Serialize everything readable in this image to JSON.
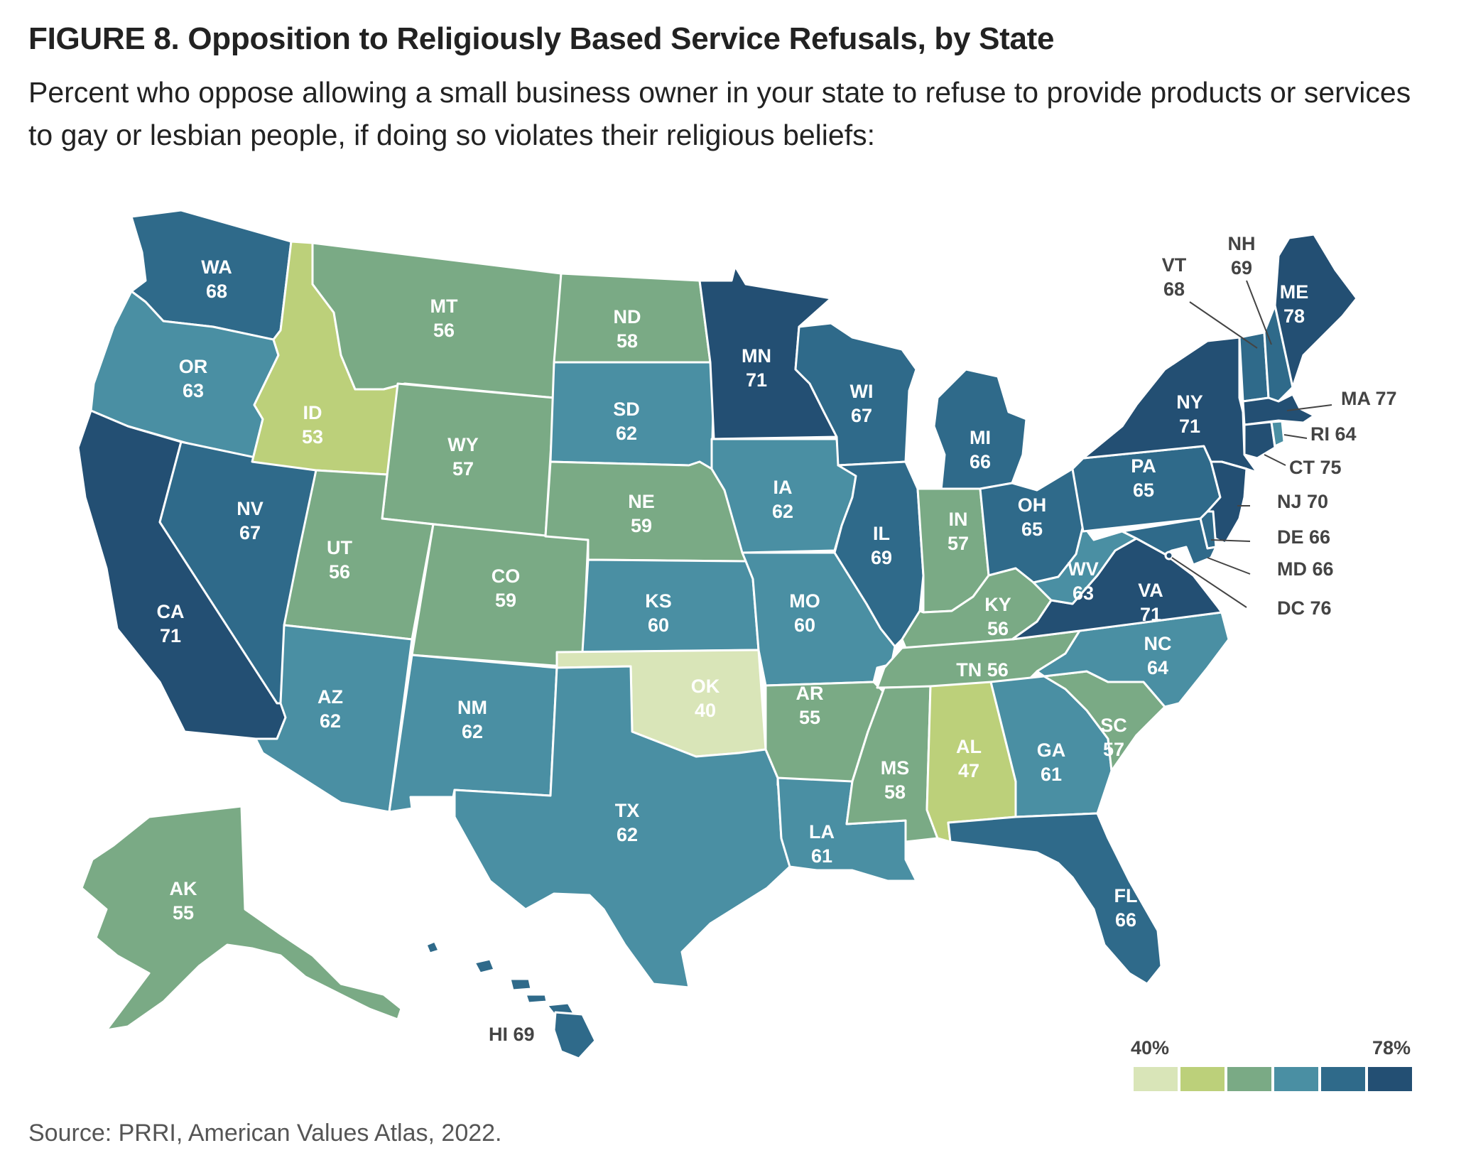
{
  "title": "FIGURE 8.  Opposition to Religiously Based Service Refusals, by State",
  "subtitle": "Percent who oppose allowing a small business owner in your state to refuse to provide products or services to gay or lesbian people, if doing so violates their religious beliefs:",
  "source": "Source: PRRI, American Values Atlas, 2022.",
  "legend": {
    "min_label": "40%",
    "max_label": "78%",
    "colors": [
      "#d9e5b8",
      "#bcd07a",
      "#7aaa85",
      "#4a8fa3",
      "#2f6a8a",
      "#234f73"
    ]
  },
  "states": [
    {
      "abbr": "WA",
      "value": 68,
      "display": "68"
    },
    {
      "abbr": "OR",
      "value": 63,
      "display": "63"
    },
    {
      "abbr": "CA",
      "value": 71,
      "display": "71"
    },
    {
      "abbr": "NV",
      "value": 67,
      "display": "67"
    },
    {
      "abbr": "ID",
      "value": 53,
      "display": "53"
    },
    {
      "abbr": "MT",
      "value": 56,
      "display": "56"
    },
    {
      "abbr": "WY",
      "value": 57,
      "display": "57"
    },
    {
      "abbr": "UT",
      "value": 56,
      "display": "56"
    },
    {
      "abbr": "CO",
      "value": 59,
      "display": "59"
    },
    {
      "abbr": "AZ",
      "value": 62,
      "display": "62"
    },
    {
      "abbr": "NM",
      "value": 62,
      "display": "62"
    },
    {
      "abbr": "ND",
      "value": 58,
      "display": "58"
    },
    {
      "abbr": "SD",
      "value": 62,
      "display": "62"
    },
    {
      "abbr": "NE",
      "value": 59,
      "display": "59"
    },
    {
      "abbr": "KS",
      "value": 60,
      "display": "60"
    },
    {
      "abbr": "OK",
      "value": 40,
      "display": "40"
    },
    {
      "abbr": "TX",
      "value": 62,
      "display": "62"
    },
    {
      "abbr": "MN",
      "value": 71,
      "display": "71"
    },
    {
      "abbr": "IA",
      "value": 62,
      "display": "62"
    },
    {
      "abbr": "MO",
      "value": 60,
      "display": "60"
    },
    {
      "abbr": "AR",
      "value": 55,
      "display": "55"
    },
    {
      "abbr": "LA",
      "value": 61,
      "display": "61"
    },
    {
      "abbr": "WI",
      "value": 67,
      "display": "67"
    },
    {
      "abbr": "IL",
      "value": 69,
      "display": "69"
    },
    {
      "abbr": "MI",
      "value": 66,
      "display": "66"
    },
    {
      "abbr": "IN",
      "value": 57,
      "display": "57"
    },
    {
      "abbr": "OH",
      "value": 65,
      "display": "65"
    },
    {
      "abbr": "KY",
      "value": 56,
      "display": "56"
    },
    {
      "abbr": "TN",
      "value": 56,
      "display": "56"
    },
    {
      "abbr": "MS",
      "value": 58,
      "display": "58"
    },
    {
      "abbr": "AL",
      "value": 47,
      "display": "47"
    },
    {
      "abbr": "GA",
      "value": 61,
      "display": "61"
    },
    {
      "abbr": "FL",
      "value": 66,
      "display": "66"
    },
    {
      "abbr": "SC",
      "value": 57,
      "display": "57"
    },
    {
      "abbr": "NC",
      "value": 64,
      "display": "64"
    },
    {
      "abbr": "VA",
      "value": 71,
      "display": "71"
    },
    {
      "abbr": "WV",
      "value": 63,
      "display": "63"
    },
    {
      "abbr": "PA",
      "value": 65,
      "display": "65"
    },
    {
      "abbr": "NY",
      "value": 71,
      "display": "71"
    },
    {
      "abbr": "VT",
      "value": 68,
      "display": "68"
    },
    {
      "abbr": "NH",
      "value": 69,
      "display": "69"
    },
    {
      "abbr": "ME",
      "value": 78,
      "display": "78"
    },
    {
      "abbr": "MA",
      "value": 77,
      "display": "77"
    },
    {
      "abbr": "RI",
      "value": 64,
      "display": "64"
    },
    {
      "abbr": "CT",
      "value": 75,
      "display": "75"
    },
    {
      "abbr": "NJ",
      "value": 70,
      "display": "70"
    },
    {
      "abbr": "DE",
      "value": 66,
      "display": "66"
    },
    {
      "abbr": "MD",
      "value": 66,
      "display": "66"
    },
    {
      "abbr": "DC",
      "value": 76,
      "display": "76"
    },
    {
      "abbr": "AK",
      "value": 55,
      "display": "55"
    },
    {
      "abbr": "HI",
      "value": 69,
      "display": "69"
    }
  ]
}
